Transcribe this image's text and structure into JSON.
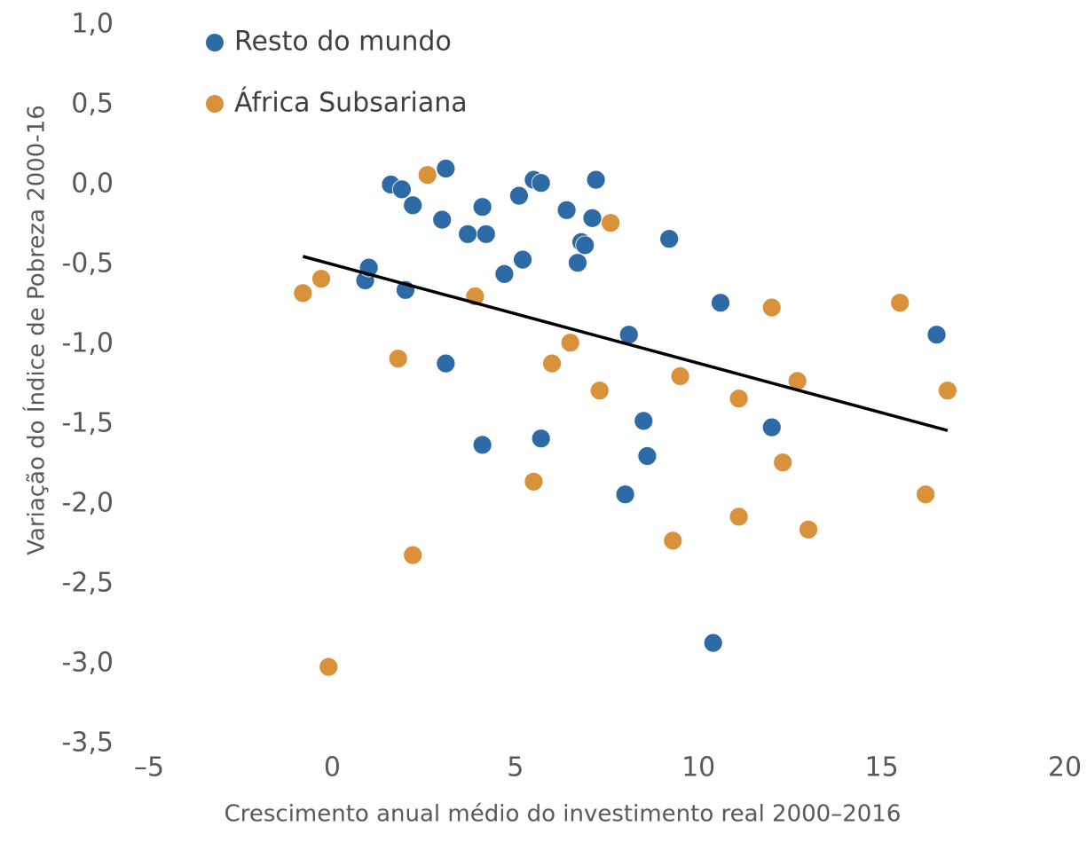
{
  "chart_data": {
    "type": "scatter",
    "x_label": "Crescimento anual médio do investimento real 2000–2016",
    "y_label": "Variação do Índice de Pobreza 2000-16",
    "xlim": [
      -5,
      20
    ],
    "xticks": [
      {
        "value": -5,
        "label": "–5"
      },
      0,
      5,
      10,
      15,
      20
    ],
    "ylim": [
      -3.5,
      1.0
    ],
    "yticks": [
      {
        "value": 1.0,
        "label": "1,0"
      },
      {
        "value": 0.5,
        "label": "0,5"
      },
      {
        "value": 0.0,
        "label": "0,0"
      },
      {
        "value": -0.5,
        "label": "-0,5"
      },
      {
        "value": -1.0,
        "label": "-1,0"
      },
      {
        "value": -1.5,
        "label": "-1,5"
      },
      {
        "value": -2.0,
        "label": "-2,0"
      },
      {
        "value": -2.5,
        "label": "-2,5"
      },
      {
        "value": -3.0,
        "label": "-3,0"
      },
      {
        "value": -3.5,
        "label": "-3,5"
      }
    ],
    "grid": false,
    "legend": "upper left",
    "series": [
      {
        "name": "Resto do mundo",
        "color": "#2e6aa6",
        "x": [
          1.6,
          1.9,
          2.2,
          3.1,
          3.0,
          3.7,
          4.1,
          4.2,
          5.1,
          5.5,
          5.7,
          4.7,
          5.2,
          6.4,
          6.8,
          6.9,
          6.7,
          7.1,
          7.2,
          9.2,
          0.9,
          1.0,
          2.0,
          3.1,
          8.1,
          10.6,
          4.1,
          5.7,
          8.5,
          8.6,
          8.0,
          12.0,
          10.4,
          16.5
        ],
        "values": [
          0.0,
          -0.03,
          -0.13,
          0.1,
          -0.22,
          -0.31,
          -0.14,
          -0.31,
          -0.07,
          0.03,
          0.01,
          -0.56,
          -0.47,
          -0.16,
          -0.36,
          -0.38,
          -0.49,
          -0.21,
          0.03,
          -0.34,
          -0.6,
          -0.52,
          -0.66,
          -1.12,
          -0.94,
          -0.74,
          -1.63,
          -1.59,
          -1.48,
          -1.7,
          -1.94,
          -1.52,
          -2.87,
          -0.94
        ]
      },
      {
        "name": "África Subsariana",
        "color": "#d9913a",
        "x": [
          2.6,
          7.6,
          -0.8,
          -0.3,
          3.9,
          1.8,
          6.0,
          6.5,
          7.3,
          9.5,
          11.1,
          12.0,
          12.7,
          15.5,
          16.8,
          5.5,
          12.3,
          11.1,
          9.3,
          13.0,
          16.2,
          2.2,
          -0.1
        ],
        "values": [
          0.06,
          -0.24,
          -0.68,
          -0.59,
          -0.7,
          -1.09,
          -1.12,
          -0.99,
          -1.29,
          -1.2,
          -1.34,
          -0.77,
          -1.23,
          -0.74,
          -1.29,
          -1.86,
          -1.74,
          -2.08,
          -2.23,
          -2.16,
          -1.94,
          -2.32,
          -3.02
        ]
      }
    ],
    "trendline": {
      "x": [
        -0.8,
        16.8
      ],
      "values": [
        -0.45,
        -1.54
      ],
      "color": "#000000"
    }
  }
}
